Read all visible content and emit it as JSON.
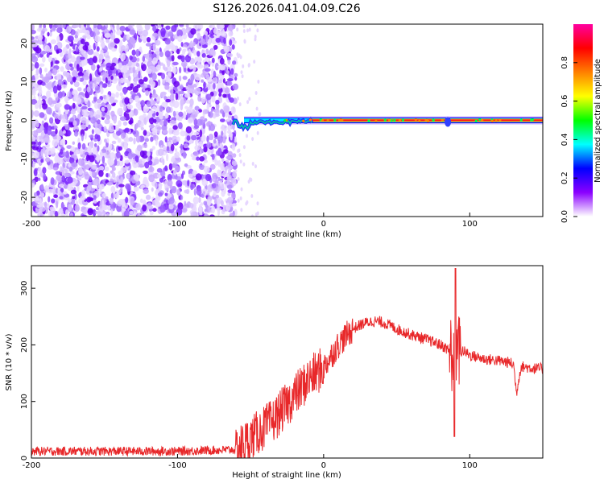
{
  "figure_title": "S126.2026.041.04.09.C26",
  "chart_data": [
    {
      "type": "heatmap",
      "title": "S126.2026.041.04.09.C26",
      "xlabel": "Height of straight line (km)",
      "ylabel": "Frequency (Hz)",
      "xlim": [
        -200,
        150
      ],
      "ylim": [
        -25,
        25
      ],
      "xticks": [
        -200,
        -100,
        0,
        100
      ],
      "yticks": [
        -20,
        -10,
        0,
        10,
        20
      ],
      "noise_region_x": [
        -200,
        -60
      ],
      "signal_line_frequency": 0,
      "colorbar": {
        "label": "Normalized spectral amplitude",
        "range": [
          0,
          1
        ],
        "ticks": [
          "0.0",
          "0.2",
          "0.4",
          "0.6",
          "0.8"
        ],
        "colors": [
          "#ffffff",
          "#8b00ff",
          "#0000ff",
          "#00ffff",
          "#00ff00",
          "#ffff00",
          "#ff8000",
          "#ff0000",
          "#ff00a0"
        ]
      }
    },
    {
      "type": "line",
      "xlabel": "Height of straight line (km)",
      "ylabel": "SNR (10 * v/v)",
      "xlim": [
        -200,
        150
      ],
      "ylim": [
        0,
        340
      ],
      "xticks": [
        -200,
        -100,
        0,
        100
      ],
      "yticks": [
        0,
        100,
        200,
        300
      ],
      "series": [
        {
          "name": "SNR",
          "color": "#e8282a",
          "x": [
            -200,
            -150,
            -100,
            -60,
            -55,
            -50,
            -45,
            -40,
            -35,
            -30,
            -25,
            -20,
            -15,
            -10,
            -5,
            0,
            5,
            10,
            15,
            20,
            25,
            30,
            35,
            40,
            45,
            50,
            60,
            70,
            80,
            85,
            88,
            90,
            92,
            95,
            100,
            110,
            120,
            128,
            130,
            132,
            135,
            140,
            145,
            150
          ],
          "y": [
            12,
            12,
            12,
            15,
            25,
            35,
            45,
            55,
            65,
            80,
            95,
            110,
            125,
            140,
            150,
            160,
            180,
            200,
            215,
            228,
            235,
            240,
            242,
            240,
            235,
            228,
            218,
            210,
            200,
            192,
            185,
            170,
            185,
            190,
            182,
            175,
            172,
            168,
            165,
            115,
            162,
            160,
            158,
            158
          ]
        }
      ]
    }
  ]
}
